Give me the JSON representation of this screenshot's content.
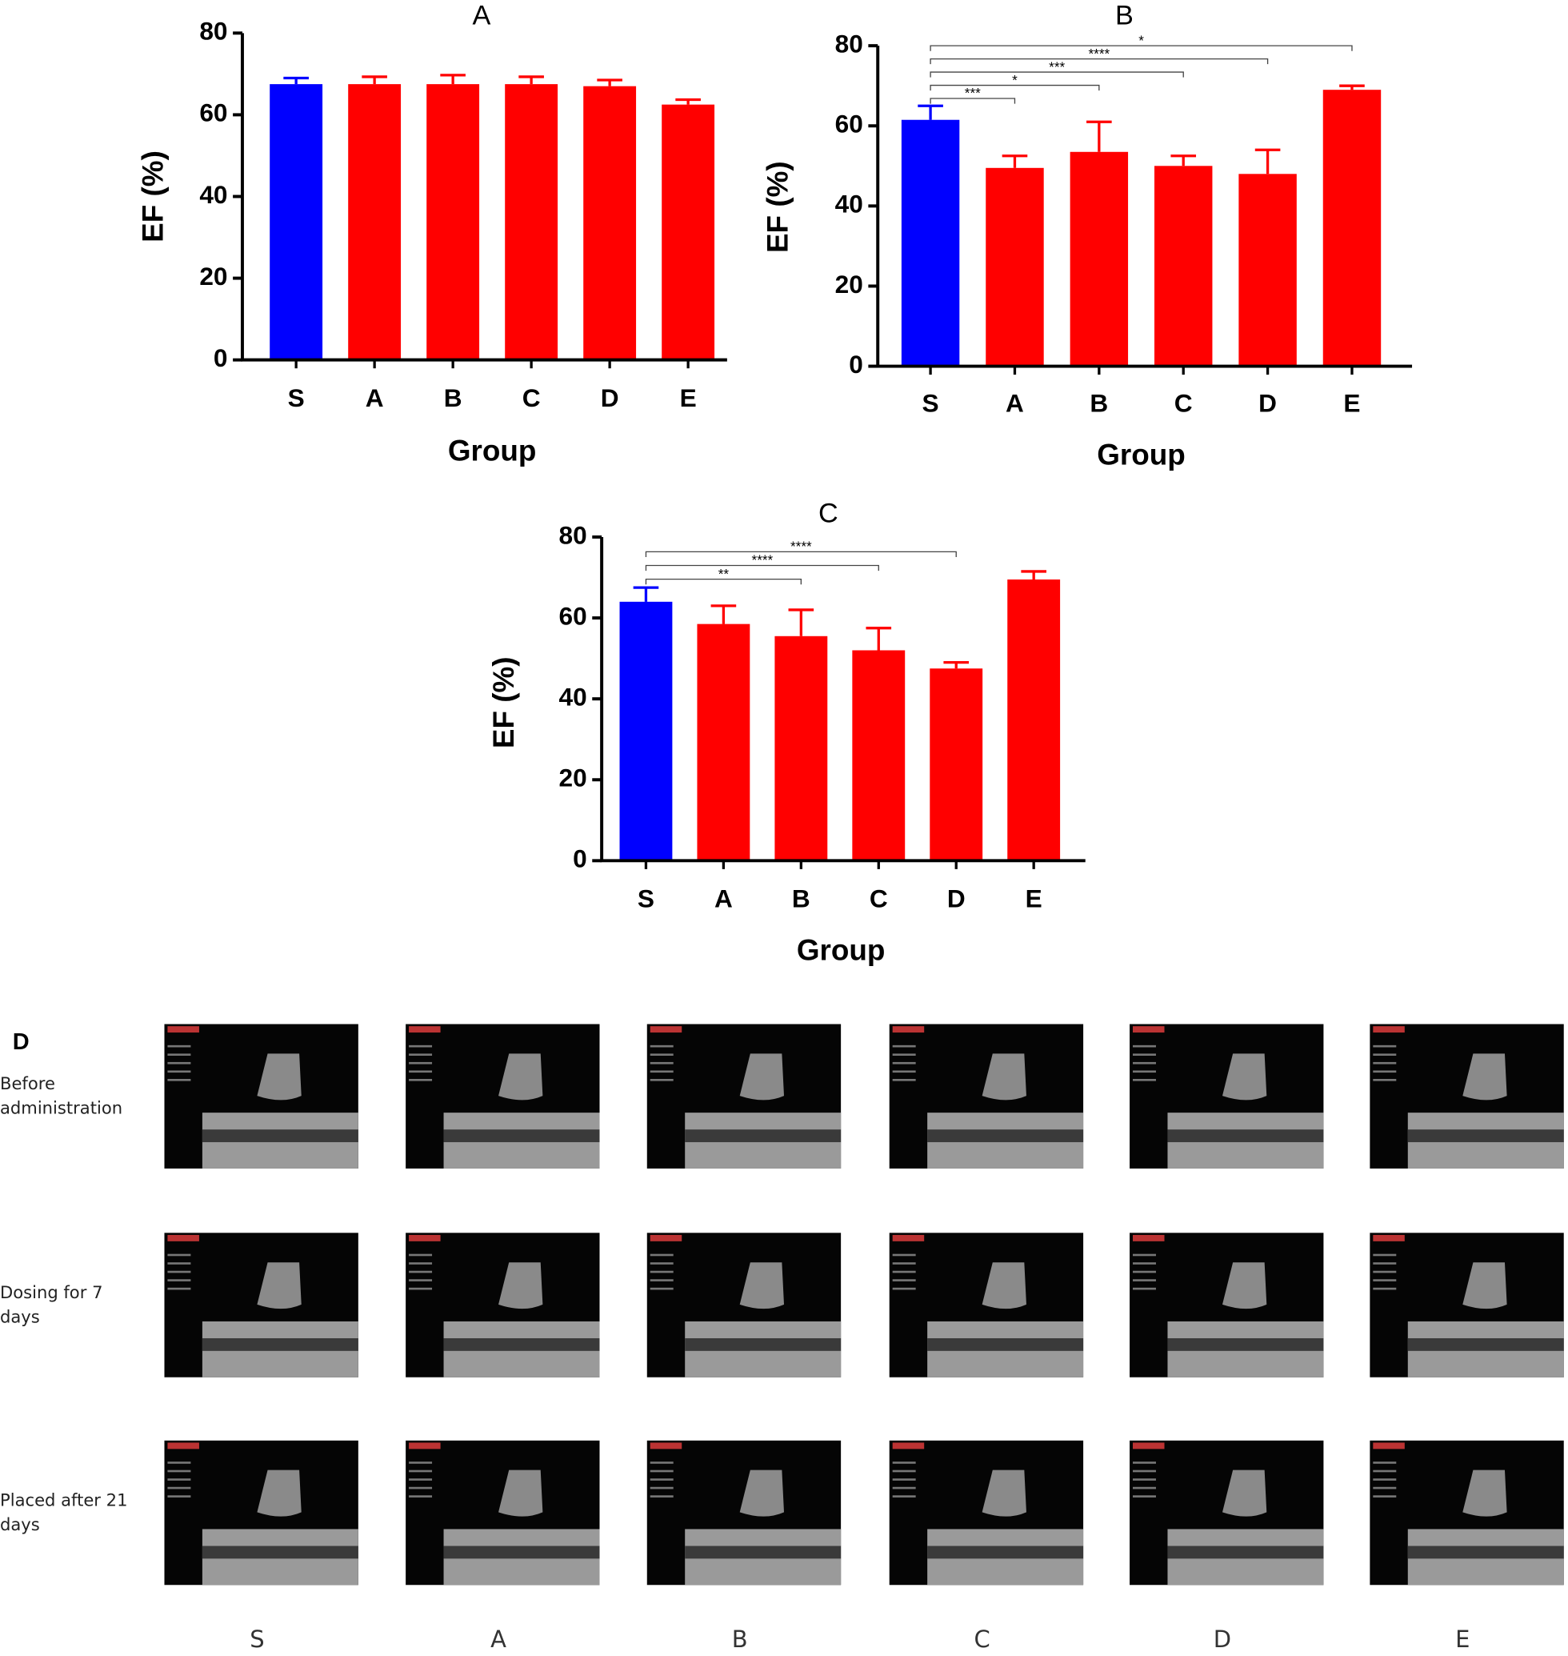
{
  "chart_data": [
    {
      "type": "bar",
      "title": "A",
      "xlabel": "Group",
      "ylabel": "EF (%)",
      "categories": [
        "S",
        "A",
        "B",
        "C",
        "D",
        "E"
      ],
      "values": [
        67.5,
        67.5,
        67.5,
        67.5,
        67,
        62.5
      ],
      "errors": [
        1.5,
        1.8,
        2.2,
        1.8,
        1.5,
        1.2
      ],
      "colors": [
        "#0000ff",
        "#ff0000",
        "#ff0000",
        "#ff0000",
        "#ff0000",
        "#ff0000"
      ],
      "ylim": [
        0,
        80
      ],
      "yticks": [
        0,
        20,
        40,
        60,
        80
      ]
    },
    {
      "type": "bar",
      "title": "B",
      "xlabel": "Group",
      "ylabel": "EF (%)",
      "categories": [
        "S",
        "A",
        "B",
        "C",
        "D",
        "E"
      ],
      "values": [
        61.5,
        49.5,
        53.5,
        50,
        48,
        69
      ],
      "errors": [
        3.5,
        3,
        7.5,
        2.5,
        6,
        1
      ],
      "colors": [
        "#0000ff",
        "#ff0000",
        "#ff0000",
        "#ff0000",
        "#ff0000",
        "#ff0000"
      ],
      "ylim": [
        0,
        80
      ],
      "yticks": [
        0,
        20,
        40,
        60,
        80
      ],
      "significance": [
        {
          "groups": [
            "S",
            "A"
          ],
          "label": "***"
        },
        {
          "groups": [
            "S",
            "B"
          ],
          "label": "*"
        },
        {
          "groups": [
            "S",
            "C"
          ],
          "label": "***"
        },
        {
          "groups": [
            "S",
            "D"
          ],
          "label": "****"
        },
        {
          "groups": [
            "S",
            "E"
          ],
          "label": "*"
        }
      ]
    },
    {
      "type": "bar",
      "title": "C",
      "xlabel": "Group",
      "ylabel": "EF (%)",
      "categories": [
        "S",
        "A",
        "B",
        "C",
        "D",
        "E"
      ],
      "values": [
        64,
        58.5,
        55.5,
        52,
        47.5,
        69.5
      ],
      "errors": [
        3.5,
        4.5,
        6.5,
        5.5,
        1.5,
        2
      ],
      "colors": [
        "#0000ff",
        "#ff0000",
        "#ff0000",
        "#ff0000",
        "#ff0000",
        "#ff0000"
      ],
      "ylim": [
        0,
        80
      ],
      "yticks": [
        0,
        20,
        40,
        60,
        80
      ],
      "significance": [
        {
          "groups": [
            "S",
            "B"
          ],
          "label": "**"
        },
        {
          "groups": [
            "S",
            "C"
          ],
          "label": "****"
        },
        {
          "groups": [
            "S",
            "D"
          ],
          "label": "****"
        }
      ]
    }
  ],
  "panel_d": {
    "label": "D",
    "rows": [
      "Before administration",
      "Dosing for 7 days",
      "Placed after 21 days"
    ],
    "columns": [
      "S",
      "A",
      "B",
      "C",
      "D",
      "E"
    ]
  }
}
